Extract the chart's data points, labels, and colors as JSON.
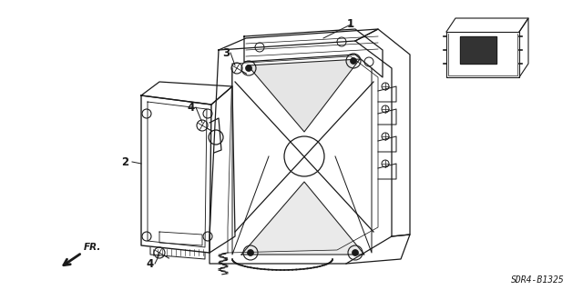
{
  "bg_color": "#ffffff",
  "line_color": "#1a1a1a",
  "figsize": [
    6.4,
    3.19
  ],
  "dpi": 100,
  "watermark": "SDR4-B1325",
  "label_fontsize": 8.5
}
